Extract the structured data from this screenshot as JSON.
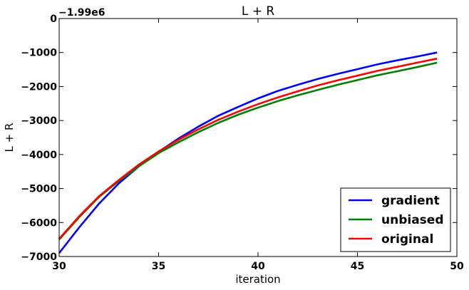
{
  "chart_data": {
    "type": "line",
    "title": "L + R",
    "xlabel": "iteration",
    "ylabel": "L + R",
    "y_offset_label": "−1.99e6",
    "xlim": [
      30,
      50
    ],
    "ylim": [
      -7000,
      0
    ],
    "x_ticks": [
      30,
      35,
      40,
      45,
      50
    ],
    "x_tick_labels": [
      "30",
      "35",
      "40",
      "45",
      "50"
    ],
    "y_ticks": [
      0,
      -1000,
      -2000,
      -3000,
      -4000,
      -5000,
      -6000,
      -7000
    ],
    "y_tick_labels": [
      "0",
      "−1000",
      "−2000",
      "−3000",
      "−4000",
      "−5000",
      "−6000",
      "−7000"
    ],
    "grid": false,
    "legend_position": "lower-right",
    "x": [
      30,
      31,
      32,
      33,
      34,
      35,
      36,
      37,
      38,
      39,
      40,
      41,
      42,
      43,
      44,
      45,
      46,
      47,
      48,
      49
    ],
    "series": [
      {
        "name": "gradient",
        "color": "#0000ff",
        "values": [
          -6900,
          -6150,
          -5450,
          -4850,
          -4350,
          -3920,
          -3530,
          -3180,
          -2860,
          -2600,
          -2350,
          -2130,
          -1950,
          -1780,
          -1630,
          -1490,
          -1350,
          -1230,
          -1120,
          -1000
        ]
      },
      {
        "name": "unbiased",
        "color": "#008000",
        "values": [
          -6500,
          -5850,
          -5250,
          -4780,
          -4350,
          -3960,
          -3640,
          -3340,
          -3070,
          -2830,
          -2620,
          -2430,
          -2260,
          -2100,
          -1950,
          -1810,
          -1670,
          -1550,
          -1430,
          -1300
        ]
      },
      {
        "name": "original",
        "color": "#ff0000",
        "values": [
          -6480,
          -5820,
          -5230,
          -4750,
          -4300,
          -3910,
          -3570,
          -3260,
          -2980,
          -2740,
          -2520,
          -2320,
          -2140,
          -1970,
          -1820,
          -1680,
          -1540,
          -1420,
          -1300,
          -1180
        ]
      }
    ]
  }
}
